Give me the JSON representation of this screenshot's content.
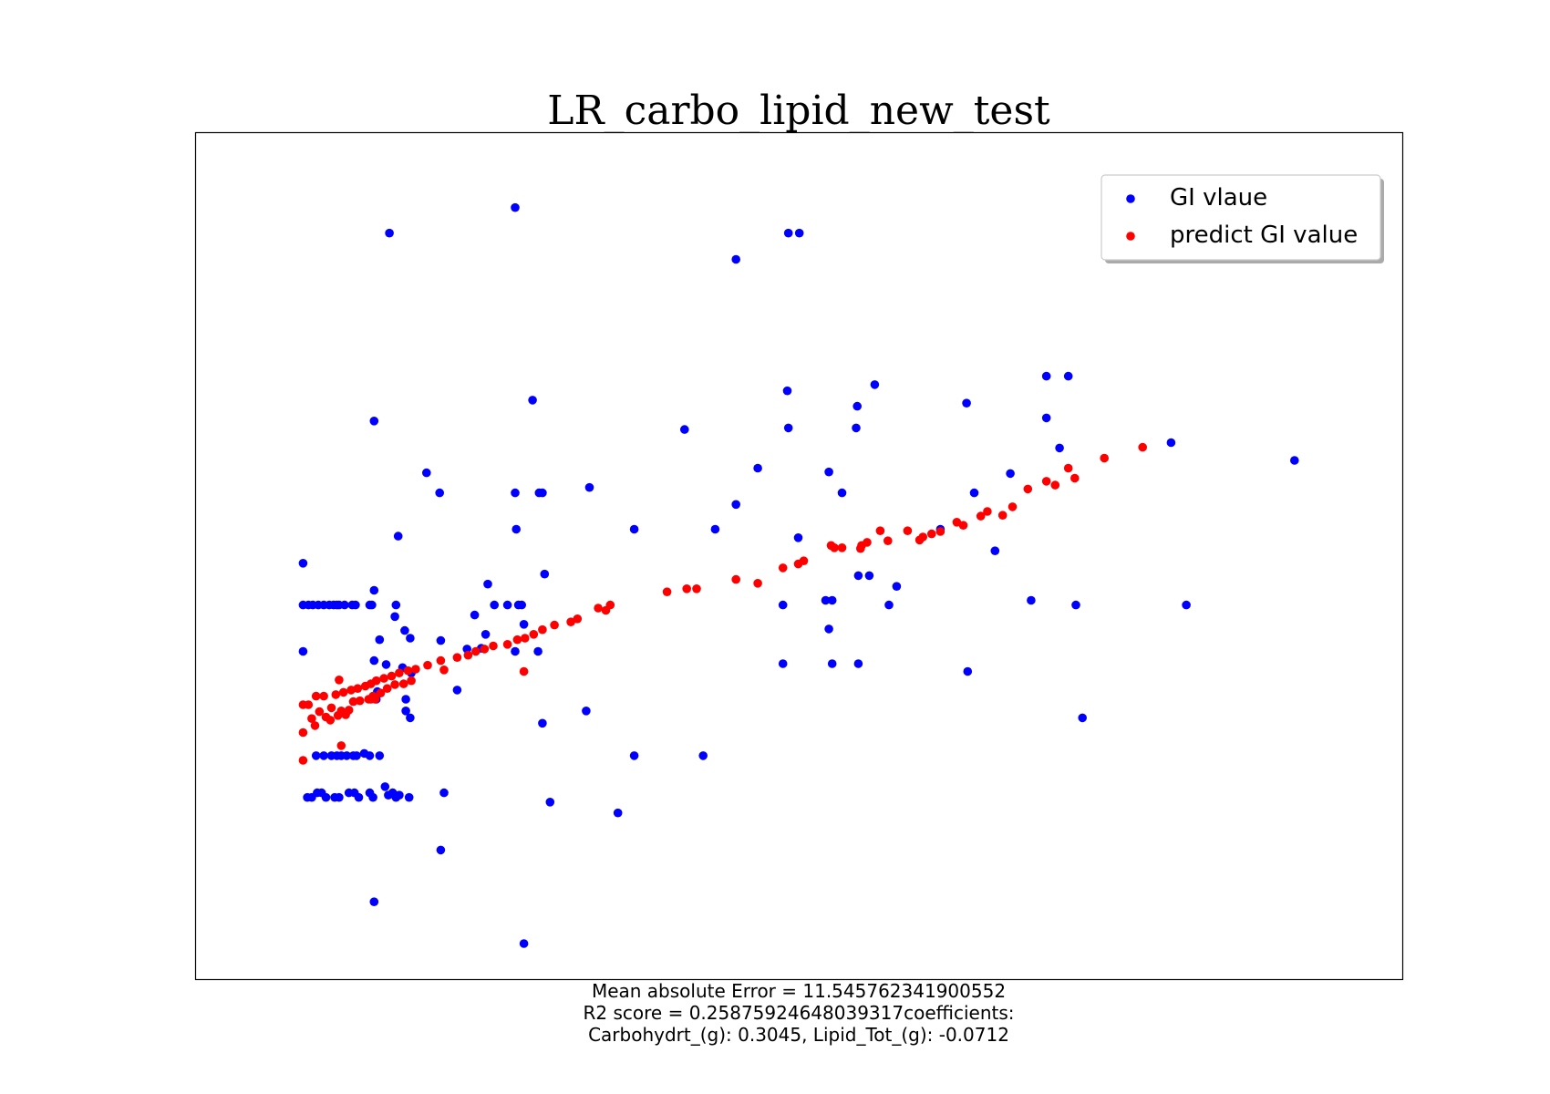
{
  "chart_data": {
    "type": "scatter",
    "title": "LR_carbo_lipid_new_test",
    "xlabel": "",
    "ylabel": "",
    "axes_ticks_visible": false,
    "grid": false,
    "legend_placement": "top-right",
    "xlim": [
      0,
      100
    ],
    "ylim": [
      0,
      100
    ],
    "caption_lines": [
      "Mean absolute Error = 11.545762341900552",
      "R2 score = 0.25875924648039317coefficients:",
      "Carbohydrt_(g): 0.3045, Lipid_Tot_(g): -0.0712"
    ],
    "series": [
      {
        "name": "GI vlaue",
        "color": "#0000ff",
        "points": [
          [
            4.7,
            49.2
          ],
          [
            4.7,
            43.8
          ],
          [
            4.7,
            37.8
          ],
          [
            5.2,
            43.8
          ],
          [
            5.6,
            43.8
          ],
          [
            6.1,
            43.8
          ],
          [
            6.6,
            43.8
          ],
          [
            7.1,
            43.8
          ],
          [
            7.5,
            43.8
          ],
          [
            8.0,
            43.8
          ],
          [
            7.8,
            43.8
          ],
          [
            8.5,
            43.8
          ],
          [
            9.2,
            43.8
          ],
          [
            9.5,
            43.8
          ],
          [
            10.8,
            43.8
          ],
          [
            11.0,
            43.8
          ],
          [
            5.9,
            24.3
          ],
          [
            6.6,
            24.3
          ],
          [
            7.3,
            24.3
          ],
          [
            7.8,
            24.3
          ],
          [
            8.2,
            24.3
          ],
          [
            8.7,
            24.3
          ],
          [
            9.3,
            24.3
          ],
          [
            9.6,
            24.3
          ],
          [
            10.3,
            24.6
          ],
          [
            10.8,
            24.3
          ],
          [
            11.7,
            24.3
          ],
          [
            5.1,
            18.9
          ],
          [
            5.5,
            18.9
          ],
          [
            6.0,
            19.5
          ],
          [
            6.4,
            19.5
          ],
          [
            6.8,
            18.9
          ],
          [
            7.6,
            18.9
          ],
          [
            8.0,
            18.9
          ],
          [
            8.9,
            19.5
          ],
          [
            9.4,
            19.5
          ],
          [
            9.8,
            18.9
          ],
          [
            10.8,
            19.5
          ],
          [
            11.1,
            18.9
          ],
          [
            12.2,
            20.3
          ],
          [
            12.5,
            19.2
          ],
          [
            12.9,
            19.5
          ],
          [
            13.2,
            18.9
          ],
          [
            14.4,
            18.9
          ],
          [
            13.5,
            19.2
          ],
          [
            11.2,
            5.4
          ],
          [
            11.2,
            36.6
          ],
          [
            11.2,
            45.7
          ],
          [
            11.2,
            67.6
          ],
          [
            11.7,
            39.3
          ],
          [
            12.6,
            91.9
          ],
          [
            13.2,
            43.8
          ],
          [
            13.1,
            42.3
          ],
          [
            13.4,
            52.7
          ],
          [
            13.8,
            35.7
          ],
          [
            14.0,
            40.5
          ],
          [
            14.5,
            39.5
          ],
          [
            14.6,
            35.0
          ],
          [
            14.1,
            31.6
          ],
          [
            14.1,
            30.1
          ],
          [
            14.5,
            29.2
          ],
          [
            11.5,
            32.6
          ],
          [
            12.3,
            36.1
          ],
          [
            11.4,
            31.6
          ],
          [
            16.0,
            60.9
          ],
          [
            17.2,
            58.3
          ],
          [
            17.3,
            39.2
          ],
          [
            17.3,
            12.1
          ],
          [
            17.6,
            19.5
          ],
          [
            18.8,
            32.8
          ],
          [
            19.7,
            38.1
          ],
          [
            20.4,
            42.5
          ],
          [
            21.0,
            38.2
          ],
          [
            21.4,
            40.0
          ],
          [
            21.6,
            46.5
          ],
          [
            22.2,
            43.8
          ],
          [
            23.4,
            43.8
          ],
          [
            24.4,
            43.8
          ],
          [
            24.7,
            43.8
          ],
          [
            24.1,
            95.2
          ],
          [
            24.2,
            53.6
          ],
          [
            24.1,
            58.3
          ],
          [
            24.1,
            37.8
          ],
          [
            24.9,
            41.3
          ],
          [
            24.9,
            0.0
          ],
          [
            25.7,
            70.3
          ],
          [
            26.2,
            37.8
          ],
          [
            26.3,
            58.3
          ],
          [
            26.6,
            58.3
          ],
          [
            26.8,
            47.8
          ],
          [
            26.6,
            28.5
          ],
          [
            27.3,
            18.3
          ],
          [
            30.6,
            30.1
          ],
          [
            30.9,
            59.0
          ],
          [
            33.5,
            16.9
          ],
          [
            35.0,
            24.3
          ],
          [
            35.0,
            53.6
          ],
          [
            39.6,
            66.5
          ],
          [
            41.3,
            24.3
          ],
          [
            42.4,
            53.6
          ],
          [
            44.3,
            56.8
          ],
          [
            44.3,
            88.5
          ],
          [
            46.3,
            61.5
          ],
          [
            48.6,
            43.8
          ],
          [
            48.6,
            36.2
          ],
          [
            49.1,
            66.7
          ],
          [
            49.0,
            71.5
          ],
          [
            49.1,
            91.9
          ],
          [
            50.1,
            91.9
          ],
          [
            50.0,
            52.5
          ],
          [
            52.8,
            61.0
          ],
          [
            52.5,
            44.4
          ],
          [
            52.8,
            40.7
          ],
          [
            53.1,
            36.2
          ],
          [
            53.1,
            44.4
          ],
          [
            54.0,
            58.3
          ],
          [
            55.3,
            66.7
          ],
          [
            55.4,
            69.5
          ],
          [
            55.5,
            47.6
          ],
          [
            55.5,
            36.2
          ],
          [
            56.5,
            47.6
          ],
          [
            57.0,
            72.3
          ],
          [
            58.3,
            43.8
          ],
          [
            59.0,
            46.2
          ],
          [
            63.0,
            53.6
          ],
          [
            65.5,
            35.2
          ],
          [
            65.4,
            69.9
          ],
          [
            66.1,
            58.3
          ],
          [
            68.0,
            50.8
          ],
          [
            69.4,
            60.8
          ],
          [
            71.3,
            44.4
          ],
          [
            72.7,
            73.4
          ],
          [
            72.7,
            68.0
          ],
          [
            74.7,
            73.4
          ],
          [
            73.9,
            64.1
          ],
          [
            75.4,
            43.8
          ],
          [
            76.0,
            29.2
          ],
          [
            84.1,
            64.8
          ],
          [
            85.5,
            43.8
          ],
          [
            95.4,
            62.5
          ]
        ]
      },
      {
        "name": "predict GI value",
        "color": "#ff0000",
        "points": [
          [
            4.7,
            23.7
          ],
          [
            4.7,
            27.3
          ],
          [
            4.7,
            30.9
          ],
          [
            5.2,
            30.9
          ],
          [
            5.5,
            29.1
          ],
          [
            5.8,
            28.2
          ],
          [
            5.9,
            32.0
          ],
          [
            6.2,
            30.0
          ],
          [
            6.6,
            32.0
          ],
          [
            6.8,
            29.3
          ],
          [
            7.2,
            28.9
          ],
          [
            7.3,
            30.5
          ],
          [
            7.7,
            32.2
          ],
          [
            7.9,
            29.5
          ],
          [
            8.2,
            30.1
          ],
          [
            8.4,
            32.5
          ],
          [
            8.6,
            29.6
          ],
          [
            8.9,
            30.2
          ],
          [
            9.1,
            32.8
          ],
          [
            9.3,
            31.3
          ],
          [
            9.7,
            33.0
          ],
          [
            9.9,
            31.4
          ],
          [
            10.4,
            33.3
          ],
          [
            10.7,
            31.6
          ],
          [
            10.9,
            33.6
          ],
          [
            11.1,
            32.0
          ],
          [
            11.4,
            34.0
          ],
          [
            11.8,
            32.4
          ],
          [
            12.1,
            34.3
          ],
          [
            12.4,
            33.0
          ],
          [
            12.8,
            34.6
          ],
          [
            13.1,
            33.5
          ],
          [
            13.5,
            35.0
          ],
          [
            13.9,
            33.6
          ],
          [
            14.3,
            35.3
          ],
          [
            14.6,
            34.0
          ],
          [
            15.0,
            35.5
          ],
          [
            8.2,
            25.6
          ],
          [
            8.0,
            34.1
          ],
          [
            10.9,
            31.6
          ],
          [
            11.3,
            31.6
          ],
          [
            16.1,
            36.0
          ],
          [
            17.3,
            36.6
          ],
          [
            17.6,
            35.4
          ],
          [
            18.8,
            37.0
          ],
          [
            19.8,
            37.3
          ],
          [
            20.5,
            37.8
          ],
          [
            21.3,
            38.1
          ],
          [
            22.1,
            38.5
          ],
          [
            23.4,
            38.7
          ],
          [
            24.3,
            39.3
          ],
          [
            25.0,
            39.5
          ],
          [
            24.9,
            35.2
          ],
          [
            25.8,
            40.0
          ],
          [
            26.6,
            40.6
          ],
          [
            27.7,
            41.2
          ],
          [
            29.2,
            41.6
          ],
          [
            29.8,
            42.0
          ],
          [
            31.7,
            43.4
          ],
          [
            32.4,
            43.1
          ],
          [
            32.8,
            43.8
          ],
          [
            38.0,
            45.5
          ],
          [
            39.8,
            45.9
          ],
          [
            40.7,
            45.9
          ],
          [
            44.3,
            47.1
          ],
          [
            46.3,
            46.6
          ],
          [
            48.6,
            48.6
          ],
          [
            50.0,
            49.1
          ],
          [
            50.5,
            49.5
          ],
          [
            53.0,
            51.5
          ],
          [
            53.3,
            51.2
          ],
          [
            54.0,
            51.2
          ],
          [
            55.7,
            51.1
          ],
          [
            55.8,
            51.5
          ],
          [
            56.3,
            51.9
          ],
          [
            57.5,
            53.4
          ],
          [
            58.2,
            52.1
          ],
          [
            60.0,
            53.4
          ],
          [
            61.1,
            52.2
          ],
          [
            61.4,
            52.6
          ],
          [
            62.2,
            53.0
          ],
          [
            63.0,
            53.3
          ],
          [
            64.5,
            54.5
          ],
          [
            65.1,
            54.1
          ],
          [
            66.7,
            55.3
          ],
          [
            67.3,
            55.9
          ],
          [
            68.7,
            55.4
          ],
          [
            69.6,
            56.5
          ],
          [
            71.0,
            58.8
          ],
          [
            72.7,
            59.8
          ],
          [
            73.5,
            59.3
          ],
          [
            74.7,
            61.5
          ],
          [
            75.3,
            60.2
          ],
          [
            78.0,
            62.8
          ],
          [
            81.5,
            64.2
          ]
        ]
      }
    ]
  }
}
